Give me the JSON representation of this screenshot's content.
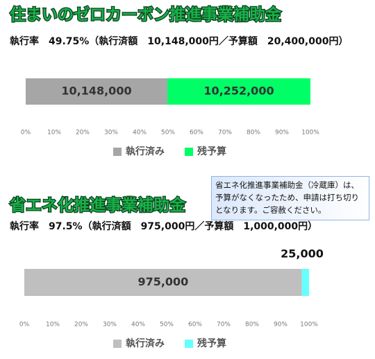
{
  "chart_data": [
    {
      "type": "bar",
      "orientation": "horizontal",
      "stacked": true,
      "grid": false,
      "title": "住まいのゼロカーボン推進事業補助金",
      "subtitle": "執行率　49.75%（執行済額　10,148,000円／予算額　20,400,000円）",
      "xlim": [
        0,
        20400000
      ],
      "xticks": [
        {
          "value": 0,
          "label": "0%"
        },
        {
          "value": 2040000,
          "label": "10%"
        },
        {
          "value": 4080000,
          "label": "20%"
        },
        {
          "value": 6120000,
          "label": "30%"
        },
        {
          "value": 8160000,
          "label": "40%"
        },
        {
          "value": 10200000,
          "label": "50%"
        },
        {
          "value": 12240000,
          "label": "60%"
        },
        {
          "value": 14280000,
          "label": "70%"
        },
        {
          "value": 16320000,
          "label": "80%"
        },
        {
          "value": 18360000,
          "label": "90%"
        },
        {
          "value": 20400000,
          "label": "100%"
        }
      ],
      "series": [
        {
          "name": "執行済み",
          "color": "#a6a6a6",
          "values": [
            10148000
          ],
          "value_labels": [
            "10,148,000"
          ]
        },
        {
          "name": "残予算",
          "color": "#00ff66",
          "values": [
            10252000
          ],
          "value_labels": [
            "10,252,000"
          ]
        }
      ]
    },
    {
      "type": "bar",
      "orientation": "horizontal",
      "stacked": true,
      "grid": false,
      "title": "省エネ化推進事業補助金",
      "subtitle": "執行率　97.5%（執行済額　975,000円／予算額　1,000,000円）",
      "annotation": "省エネ化推進事業補助金（冷蔵庫）は、予算がなくなったため、申請は打ち切りとなります。ご容赦ください。",
      "xlim": [
        0,
        1000000
      ],
      "xticks": [
        {
          "value": 0,
          "label": "0%"
        },
        {
          "value": 100000,
          "label": "10%"
        },
        {
          "value": 200000,
          "label": "20%"
        },
        {
          "value": 300000,
          "label": "30%"
        },
        {
          "value": 400000,
          "label": "40%"
        },
        {
          "value": 500000,
          "label": "50%"
        },
        {
          "value": 600000,
          "label": "60%"
        },
        {
          "value": 700000,
          "label": "70%"
        },
        {
          "value": 800000,
          "label": "80%"
        },
        {
          "value": 900000,
          "label": "90%"
        },
        {
          "value": 1000000,
          "label": "100%"
        }
      ],
      "series": [
        {
          "name": "執行済み",
          "color": "#bfbfbf",
          "values": [
            975000
          ],
          "value_labels": [
            "975,000"
          ]
        },
        {
          "name": "残予算",
          "color": "#66ffff",
          "values": [
            25000
          ],
          "value_labels": [
            "25,000"
          ]
        }
      ]
    }
  ]
}
